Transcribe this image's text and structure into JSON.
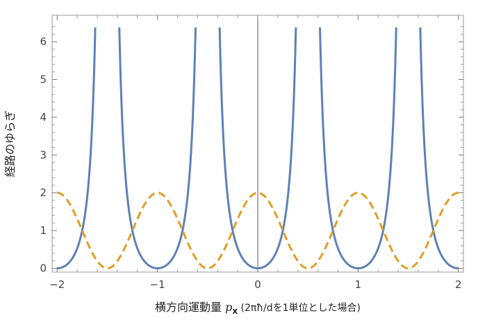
{
  "chart_data": {
    "type": "line",
    "xlabel": "横方向運動量 p_x (2πħ/dを1単位とした場合)",
    "xlabel_main": "横方向運動量 ",
    "xlabel_var": "p",
    "xlabel_sub": "x",
    "xlabel_paren": " (2πħ/dを1単位とした場合)",
    "ylabel": "経路のゆらぎ",
    "xlim": [
      -2.05,
      2.05
    ],
    "ylim": [
      -0.1,
      6.7
    ],
    "x_ticks": [
      -2,
      -1,
      0,
      1,
      2
    ],
    "x_tick_labels": [
      "−2",
      "−1",
      "0",
      "1",
      "2"
    ],
    "y_ticks": [
      0,
      1,
      2,
      3,
      4,
      5,
      6
    ],
    "y_tick_labels": [
      "0",
      "1",
      "2",
      "3",
      "4",
      "5",
      "6"
    ],
    "series": [
      {
        "style": "solid",
        "color": "#5e81b5",
        "curve": "tan^2(pi*x)",
        "cutoff": 6.45
      },
      {
        "style": "dashed",
        "color": "#e19c24",
        "curve": "1 + cos(2*pi*x)"
      }
    ],
    "grid": false,
    "legend": "none"
  }
}
